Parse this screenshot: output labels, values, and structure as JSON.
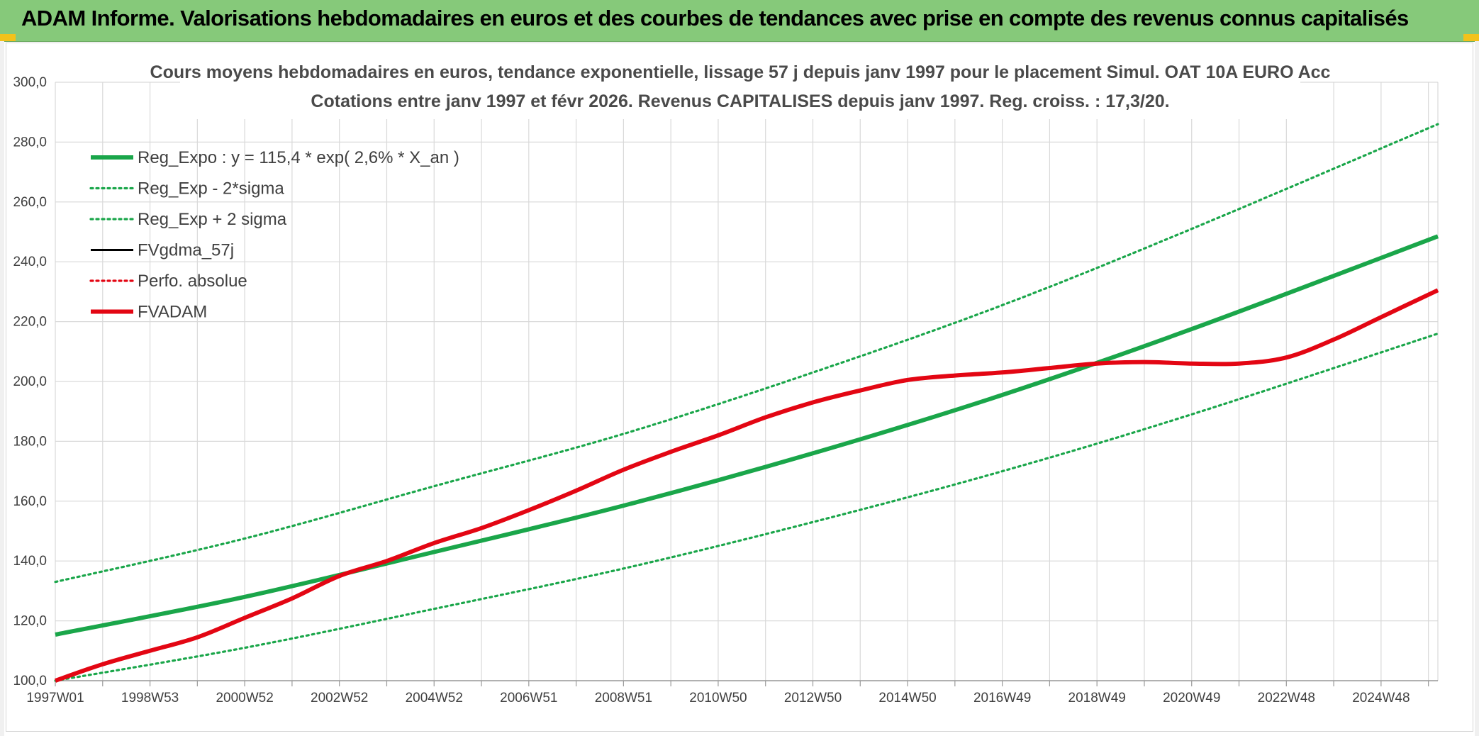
{
  "banner": {
    "title": "ADAM Informe. Valorisations hebdomadaires en euros et des courbes de tendances avec prise en compte des revenus connus capitalisés"
  },
  "colors": {
    "banner_bg": "#86c97a",
    "green": "#1aa64a",
    "red": "#e30613",
    "black": "#000000",
    "grid": "#d9d9d9"
  },
  "chart_data": {
    "type": "line",
    "title": "Cours moyens hebdomadaires en euros, tendance exponentielle, lissage 57 j depuis janv 1997 pour le placement Simul. OAT 10A EURO Acc",
    "subtitle": "Cotations entre janv 1997 et févr 2026. Revenus CAPITALISES depuis janv 1997. Reg. croiss. : 17,3/20.",
    "xlabel": "",
    "ylabel": "",
    "ylim": [
      100,
      300
    ],
    "xlim": [
      1997.0,
      2026.2
    ],
    "y_ticks": [
      100,
      120,
      140,
      160,
      180,
      200,
      220,
      240,
      260,
      280,
      300
    ],
    "y_tick_labels": [
      "100,0",
      "120,0",
      "140,0",
      "160,0",
      "180,0",
      "200,0",
      "220,0",
      "240,0",
      "260,0",
      "280,0",
      "300,0"
    ],
    "x_ticks": [
      1997.0,
      1999.0,
      2001.0,
      2003.0,
      2005.0,
      2007.0,
      2009.0,
      2011.0,
      2013.0,
      2015.0,
      2017.0,
      2019.0,
      2021.0,
      2023.0,
      2025.0
    ],
    "x_tick_labels": [
      "1997W01",
      "1998W53",
      "2000W52",
      "2002W52",
      "2004W52",
      "2006W51",
      "2008W51",
      "2010W50",
      "2012W50",
      "2014W50",
      "2016W49",
      "2018W49",
      "2020W49",
      "2022W48",
      "2024W48"
    ],
    "grid": true,
    "legend_position": "top-left",
    "series": [
      {
        "name": "Reg_Expo : y = 115,4 * exp( 2,6% *  X_an )",
        "style": "solid-thick",
        "color": "#1aa64a",
        "x": [
          1997.0,
          2001.0,
          2005.0,
          2009.0,
          2013.0,
          2017.0,
          2021.0,
          2026.2
        ],
        "values": [
          115.4,
          128.0,
          143.0,
          158.5,
          176.0,
          195.5,
          217.5,
          248.5
        ]
      },
      {
        "name": "Reg_Exp - 2*sigma",
        "style": "dotted",
        "color": "#1aa64a",
        "x": [
          1997.0,
          2001.0,
          2005.0,
          2009.0,
          2013.0,
          2017.0,
          2021.0,
          2026.2
        ],
        "values": [
          100.0,
          111.0,
          124.0,
          137.5,
          153.0,
          170.0,
          189.0,
          216.0
        ]
      },
      {
        "name": "Reg_Exp + 2 sigma",
        "style": "dotted",
        "color": "#1aa64a",
        "x": [
          1997.0,
          2001.0,
          2005.0,
          2009.0,
          2013.0,
          2017.0,
          2021.0,
          2026.2
        ],
        "values": [
          133.0,
          147.5,
          165.0,
          182.5,
          203.0,
          225.5,
          251.0,
          286.0
        ]
      },
      {
        "name": "FVgdma_57j",
        "style": "solid",
        "color": "#000000",
        "x": [],
        "values": []
      },
      {
        "name": "Perfo. absolue",
        "style": "dotted",
        "color": "#e30613",
        "x": [],
        "values": []
      },
      {
        "name": "FVADAM",
        "style": "solid-thick",
        "color": "#e30613",
        "x": [
          1997.0,
          1998.0,
          1999.0,
          2000.0,
          2001.0,
          2002.0,
          2003.0,
          2004.0,
          2005.0,
          2006.0,
          2007.0,
          2008.0,
          2009.0,
          2010.0,
          2011.0,
          2012.0,
          2013.0,
          2014.0,
          2015.0,
          2016.0,
          2017.0,
          2018.0,
          2019.0,
          2020.0,
          2021.0,
          2022.0,
          2023.0,
          2024.0,
          2025.0,
          2026.2
        ],
        "values": [
          100.0,
          105.5,
          110.0,
          114.5,
          121.0,
          127.5,
          135.0,
          140.0,
          146.0,
          151.0,
          157.0,
          163.5,
          170.5,
          176.5,
          182.0,
          188.0,
          193.0,
          197.0,
          200.5,
          202.0,
          203.0,
          204.5,
          206.0,
          206.5,
          206.0,
          206.0,
          208.0,
          214.0,
          221.5,
          230.5
        ]
      }
    ]
  }
}
